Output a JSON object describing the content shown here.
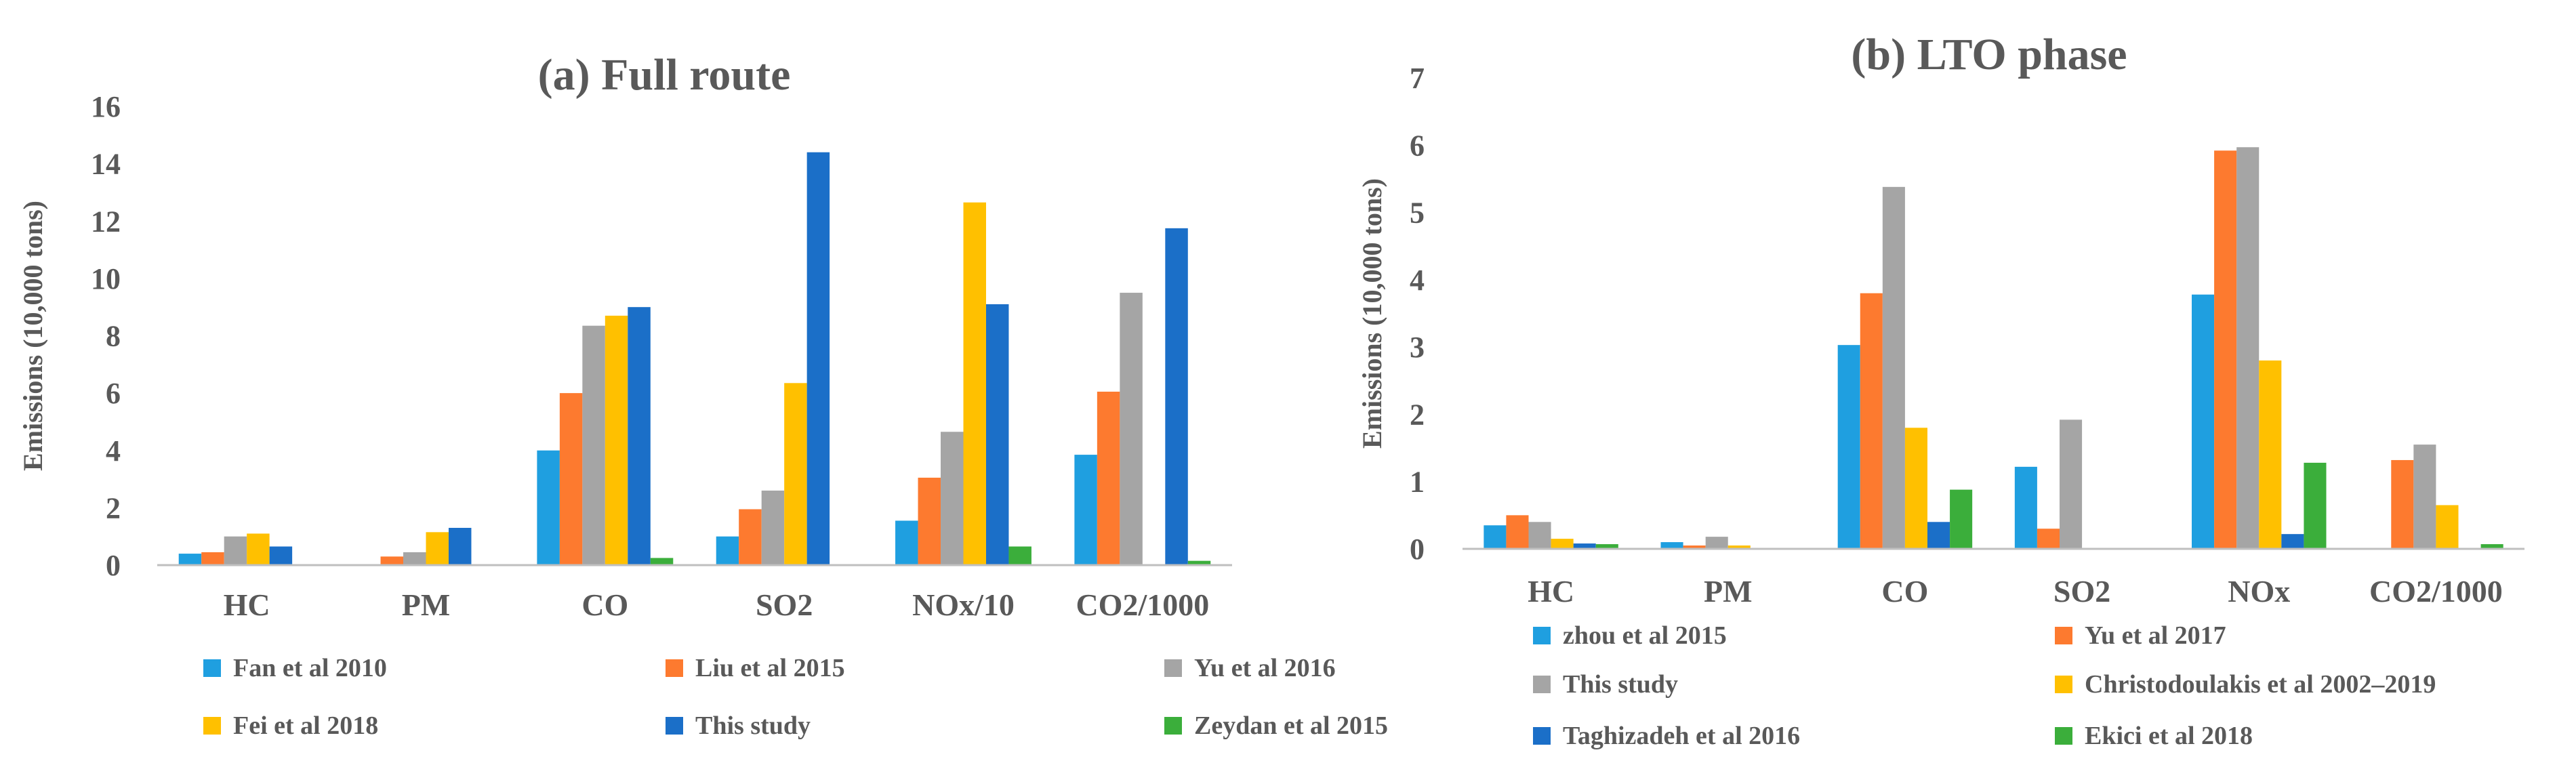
{
  "chart_data": [
    {
      "type": "bar",
      "title": "(a) Full route",
      "ylabel": "Emissions (10,000 tons)",
      "xlabel": "",
      "ylim": [
        0,
        16
      ],
      "yticks": [
        0,
        2,
        4,
        6,
        8,
        10,
        12,
        14,
        16
      ],
      "grid": false,
      "legend_position": "bottom",
      "categories": [
        "HC",
        "PM",
        "CO",
        "SO2",
        "NOx/10",
        "CO2/1000"
      ],
      "series": [
        {
          "name": "Fan et al 2010",
          "color": "#1f9fe0",
          "values": [
            0.4,
            0,
            4.0,
            1.0,
            1.55,
            3.85
          ]
        },
        {
          "name": "Liu et al 2015",
          "color": "#fd7a2f",
          "values": [
            0.45,
            0.3,
            6.0,
            1.95,
            3.05,
            6.05
          ]
        },
        {
          "name": "Yu et al 2016",
          "color": "#a5a5a5",
          "values": [
            1.0,
            0.45,
            8.35,
            2.6,
            4.65,
            9.5
          ]
        },
        {
          "name": "Fei et al 2018",
          "color": "#ffc000",
          "values": [
            1.1,
            1.15,
            8.7,
            6.35,
            12.65,
            0
          ]
        },
        {
          "name": "This study",
          "color": "#1b6fc8",
          "values": [
            0.65,
            1.3,
            9.0,
            14.4,
            9.1,
            11.75
          ]
        },
        {
          "name": "Zeydan et al 2015",
          "color": "#3bae3b",
          "values": [
            0,
            0,
            0.25,
            0,
            0.65,
            0.15
          ]
        }
      ]
    },
    {
      "type": "bar",
      "title": "(b) LTO phase",
      "ylabel": "Emissions (10,000 tons)",
      "xlabel": "",
      "ylim": [
        0,
        7
      ],
      "yticks": [
        0,
        1,
        2,
        3,
        4,
        5,
        6,
        7
      ],
      "grid": false,
      "legend_position": "bottom",
      "categories": [
        "HC",
        "PM",
        "CO",
        "SO2",
        "NOx",
        "CO2/1000"
      ],
      "series": [
        {
          "name": "zhou et al 2015",
          "color": "#1f9fe0",
          "values": [
            0.35,
            0.1,
            3.03,
            1.22,
            3.78,
            0
          ]
        },
        {
          "name": "Yu et al 2017",
          "color": "#fd7a2f",
          "values": [
            0.5,
            0.05,
            3.8,
            0.3,
            5.92,
            1.32
          ]
        },
        {
          "name": "This study",
          "color": "#a5a5a5",
          "values": [
            0.4,
            0.18,
            5.38,
            1.92,
            5.97,
            1.55
          ]
        },
        {
          "name": "Christodoulakis et al 2002–2019",
          "color": "#ffc000",
          "values": [
            0.15,
            0.05,
            1.8,
            0,
            2.8,
            0.65
          ]
        },
        {
          "name": "Taghizadeh et al 2016",
          "color": "#1b6fc8",
          "values": [
            0.08,
            0,
            0.4,
            0,
            0.22,
            0
          ]
        },
        {
          "name": "Ekici et al 2018",
          "color": "#3bae3b",
          "values": [
            0.07,
            0,
            0.88,
            0,
            1.28,
            0.07
          ]
        }
      ]
    }
  ]
}
